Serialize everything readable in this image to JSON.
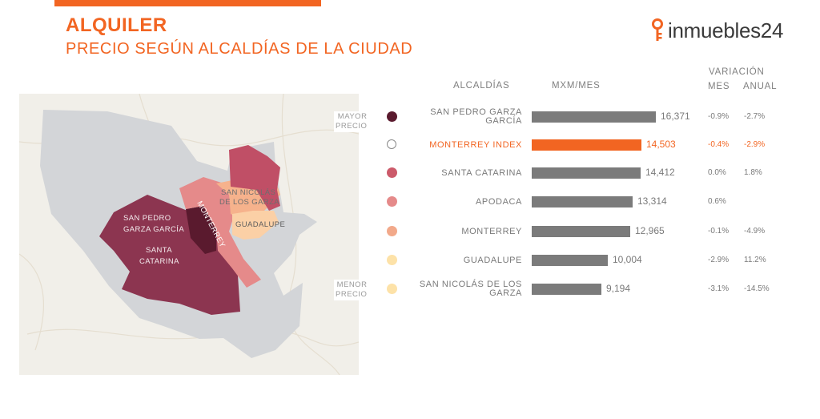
{
  "header": {
    "title": "ALQUILER",
    "subtitle": "PRECIO SEGÚN ALCALDÍAS DE LA CIUDAD",
    "logo_text": "inmuebles24",
    "accent_color": "#f26522"
  },
  "map": {
    "scale_top": [
      "MAYOR",
      "PRECIO"
    ],
    "scale_bottom": [
      "MENOR",
      "PRECIO"
    ],
    "labels": {
      "san_pedro": [
        "SAN PEDRO",
        "GARZA GARCÍA"
      ],
      "santa_catarina": [
        "SANTA",
        "CATARINA"
      ],
      "monterrey": "MONTERREY",
      "san_nicolas": [
        "SAN NICOLÁS",
        "DE LOS GARZA"
      ],
      "guadalupe": "GUADALUPE"
    }
  },
  "table_headers": {
    "alcaldias": "ALCALDÍAS",
    "mxm_mes": "MXM/MES",
    "variacion": "VARIACIÓN",
    "mes": "MES",
    "anual": "ANUAL"
  },
  "chart_data": {
    "type": "bar",
    "orientation": "horizontal",
    "categories": [
      "SAN PEDRO GARZA GARCÍA",
      "MONTERREY INDEX",
      "SANTA CATARINA",
      "APODACA",
      "MONTERREY",
      "GUADALUPE",
      "SAN NICOLÁS DE LOS GARZA"
    ],
    "values": [
      16371,
      14503,
      14412,
      13314,
      12965,
      10004,
      9194
    ],
    "value_labels": [
      "16,371",
      "14,503",
      "14,412",
      "13,314",
      "12,965",
      "10,004",
      "9,194"
    ],
    "variacion_mes": [
      "-0.9%",
      "-0.4%",
      "0.0%",
      "0.6%",
      "-0.1%",
      "-2.9%",
      "-3.1%"
    ],
    "variacion_anual": [
      "-2.7%",
      "-2.9%",
      "1.8%",
      "",
      "-4.9%",
      "11.2%",
      "-14.5%"
    ],
    "dot_colors": [
      "#5a1a2e",
      "#ffffff",
      "#cc5a6a",
      "#e58a8a",
      "#f2a98a",
      "#fde2a8",
      "#fde2a8"
    ],
    "bar_colors": [
      "#7b7b7b",
      "#f26522",
      "#7b7b7b",
      "#7b7b7b",
      "#7b7b7b",
      "#7b7b7b",
      "#7b7b7b"
    ],
    "highlight": "MONTERREY INDEX",
    "xlim": [
      0,
      17500
    ]
  }
}
